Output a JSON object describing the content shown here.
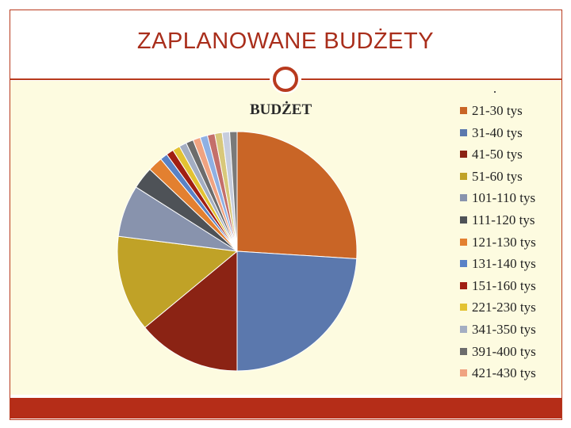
{
  "slide": {
    "title": "ZAPLANOWANE BUDŻETY",
    "colors": {
      "accent": "#b83a1e",
      "content_background": "#fdfbe0",
      "footer_bar": "#b52d18"
    }
  },
  "chart_data": {
    "type": "pie",
    "title": "BUDŻET",
    "legend_position": "right",
    "slices": [
      {
        "label": "21-30 tys",
        "value": 26,
        "color": "#c96526"
      },
      {
        "label": "31-40 tys",
        "value": 24,
        "color": "#5b78ad"
      },
      {
        "label": "41-50 tys",
        "value": 14,
        "color": "#8b2314"
      },
      {
        "label": "51-60 tys",
        "value": 13,
        "color": "#c0a227"
      },
      {
        "label": "101-110 tys",
        "value": 7,
        "color": "#8893ad"
      },
      {
        "label": "111-120 tys",
        "value": 3,
        "color": "#4e5257"
      },
      {
        "label": "121-130 tys",
        "value": 2,
        "color": "#e38030"
      },
      {
        "label": "131-140 tys",
        "value": 1,
        "color": "#5a82c6"
      },
      {
        "label": "151-160 tys",
        "value": 1,
        "color": "#a11e12"
      },
      {
        "label": "221-230 tys",
        "value": 1,
        "color": "#e3c232"
      },
      {
        "label": "341-350 tys",
        "value": 1,
        "color": "#a4aec2"
      },
      {
        "label": "391-400 tys",
        "value": 1,
        "color": "#6c6c6c"
      },
      {
        "label": "421-430 tys",
        "value": 1,
        "color": "#f0a381"
      },
      {
        "label": "",
        "value": 1,
        "color": "#8fb0e3"
      },
      {
        "label": "",
        "value": 1,
        "color": "#c46f6a"
      },
      {
        "label": "",
        "value": 1,
        "color": "#d8c87a"
      },
      {
        "label": "",
        "value": 1,
        "color": "#c7cddd"
      },
      {
        "label": "",
        "value": 1,
        "color": "#7a7a7a"
      }
    ]
  }
}
